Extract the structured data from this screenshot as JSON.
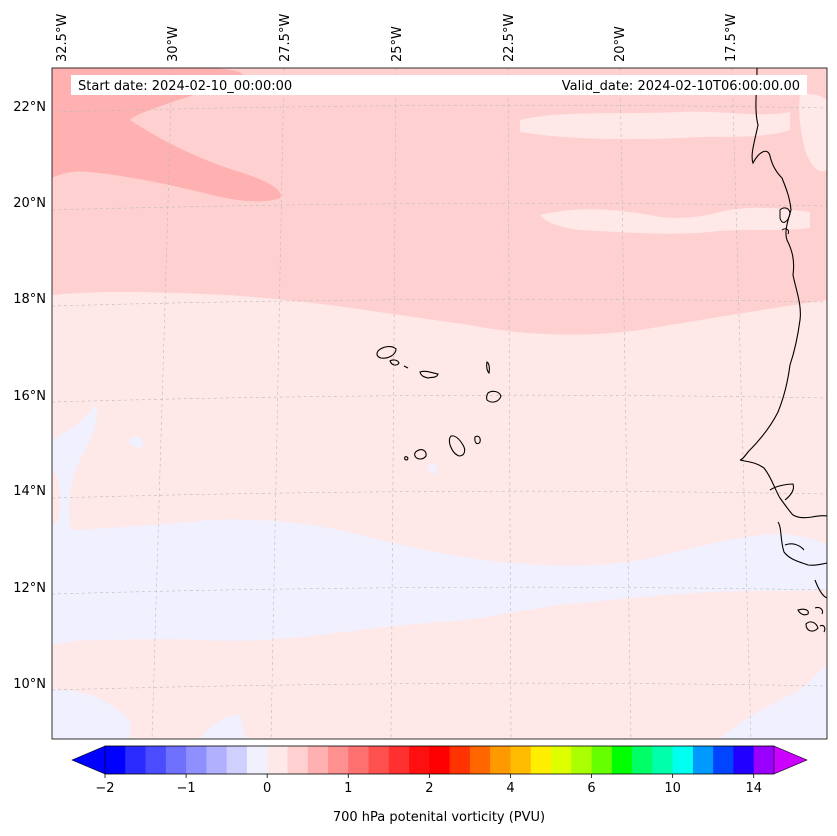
{
  "header": {
    "start_date": "Start date: 2024-02-10_00:00:00",
    "valid_date": "Valid_date: 2024-02-10T06:00:00.00"
  },
  "longitude_labels": [
    "32.5°W",
    "30°W",
    "27.5°W",
    "25°W",
    "22.5°W",
    "20°W",
    "17.5°W"
  ],
  "latitude_labels": [
    "22°N",
    "20°N",
    "18°N",
    "16°N",
    "14°N",
    "12°N",
    "10°N"
  ],
  "colorbar": {
    "label": "700 hPa potenital vorticity (PVU)",
    "tick_labels": [
      "−2",
      "−1",
      "0",
      "1",
      "2",
      "4",
      "6",
      "10",
      "14"
    ],
    "colors": [
      "#0000ff",
      "#2b2bff",
      "#4c4cff",
      "#7070ff",
      "#8f8fff",
      "#b0b0ff",
      "#d0d0ff",
      "#f0f0ff",
      "#ffe8e8",
      "#ffd0d0",
      "#ffb0b0",
      "#ff9090",
      "#ff7070",
      "#ff5050",
      "#ff3030",
      "#ff1010",
      "#ff0000",
      "#ff3300",
      "#ff6600",
      "#ff9900",
      "#ffbb00",
      "#ffee00",
      "#ddff00",
      "#aaff00",
      "#66ff00",
      "#00ff00",
      "#00ff66",
      "#00ffaa",
      "#00ffee",
      "#0099ff",
      "#0044ff",
      "#2200ff",
      "#9900ff"
    ],
    "extend_low_color": "#0000ff",
    "extend_high_color": "#cc00ff"
  },
  "field_colors": {
    "background": "#ffe8e8",
    "band_light": "#ffd0d0",
    "band_strong": "#ffb0b0",
    "negative": "#f0f0ff"
  },
  "map_data": {
    "projection": "conic",
    "lon_range": [
      -33,
      -16
    ],
    "lat_range": [
      9,
      22.8
    ],
    "variable": "700 hPa potential vorticity",
    "units": "PVU"
  }
}
